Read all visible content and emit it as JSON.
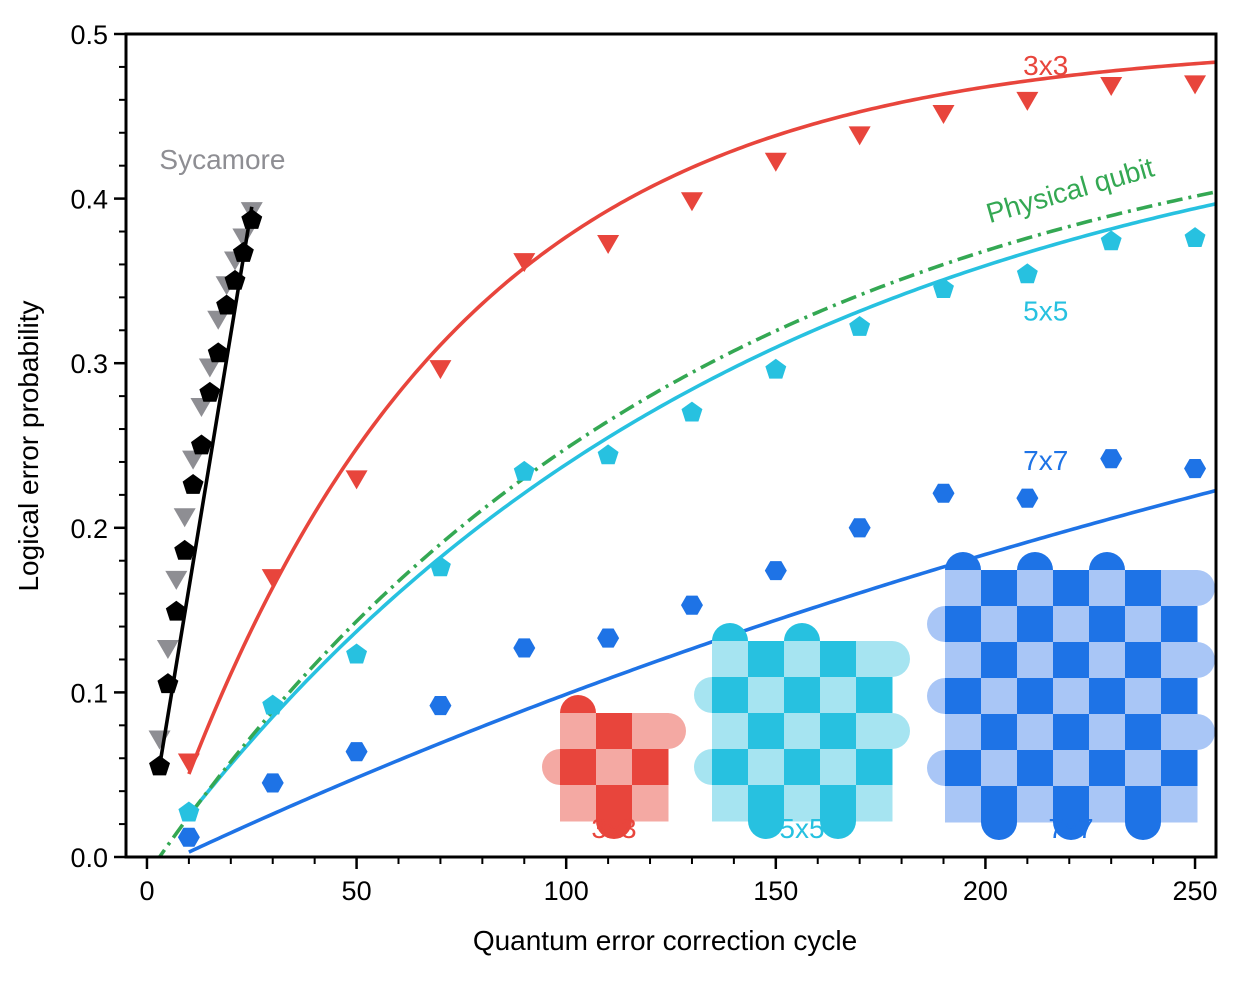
{
  "chart_data": {
    "type": "line",
    "xlabel": "Quantum error correction cycle",
    "ylabel": "Logical error probability",
    "xlim": [
      -5,
      255
    ],
    "ylim": [
      0,
      0.5
    ],
    "xticks": [
      0,
      50,
      100,
      150,
      200,
      250
    ],
    "xtick_labels": [
      "0",
      "50",
      "100",
      "150",
      "200",
      "250"
    ],
    "yticks": [
      0,
      0.1,
      0.2,
      0.3,
      0.4,
      0.5
    ],
    "ytick_labels": [
      "0.0",
      "0.1",
      "0.2",
      "0.3",
      "0.4",
      "0.5"
    ],
    "grid": false,
    "legend": "none",
    "colors": {
      "sycamore": "#8e8e93",
      "sycamore_dark": "#000000",
      "d3": "#e8453c",
      "d3_light": "#f4a9a3",
      "d5": "#27c1e0",
      "d5_light": "#a6e4f1",
      "d7": "#1e73e6",
      "d7_light": "#a9c6f6",
      "physical": "#34a853"
    },
    "labels": {
      "sycamore": "Sycamore",
      "physical": "Physical qubit",
      "d3": "3x3",
      "d5": "5x5",
      "d7": "7x7"
    },
    "series": [
      {
        "key": "sycamore_gray",
        "marker": "triangle-down",
        "color": "#8e8e93",
        "points": [
          [
            3,
            0.072
          ],
          [
            5,
            0.127
          ],
          [
            7,
            0.169
          ],
          [
            9,
            0.207
          ],
          [
            11,
            0.242
          ],
          [
            13,
            0.274
          ],
          [
            15,
            0.298
          ],
          [
            17,
            0.327
          ],
          [
            19,
            0.348
          ],
          [
            21,
            0.363
          ],
          [
            23,
            0.377
          ],
          [
            25,
            0.393
          ]
        ]
      },
      {
        "key": "sycamore_black",
        "marker": "pentagon",
        "color": "#000000",
        "points": [
          [
            3,
            0.055
          ],
          [
            5,
            0.105
          ],
          [
            7,
            0.149
          ],
          [
            9,
            0.186
          ],
          [
            11,
            0.226
          ],
          [
            13,
            0.25
          ],
          [
            15,
            0.282
          ],
          [
            17,
            0.306
          ],
          [
            19,
            0.335
          ],
          [
            21,
            0.35
          ],
          [
            23,
            0.367
          ],
          [
            25,
            0.387
          ]
        ],
        "fit": [
          [
            3,
            0.055
          ],
          [
            25,
            0.395
          ]
        ]
      },
      {
        "key": "d3",
        "marker": "triangle-down",
        "color": "#e8453c",
        "points": [
          [
            10,
            0.058
          ],
          [
            30,
            0.17
          ],
          [
            50,
            0.23
          ],
          [
            70,
            0.297
          ],
          [
            90,
            0.362
          ],
          [
            110,
            0.373
          ],
          [
            130,
            0.399
          ],
          [
            150,
            0.423
          ],
          [
            170,
            0.439
          ],
          [
            190,
            0.452
          ],
          [
            210,
            0.46
          ],
          [
            230,
            0.469
          ],
          [
            250,
            0.47
          ]
        ],
        "fit_model": {
          "p0": -0.02,
          "amp": 0.515,
          "tau": 68,
          "from": 10,
          "to": 255
        }
      },
      {
        "key": "d5",
        "marker": "pentagon",
        "color": "#27c1e0",
        "points": [
          [
            10,
            0.027
          ],
          [
            30,
            0.092
          ],
          [
            50,
            0.123
          ],
          [
            70,
            0.176
          ],
          [
            90,
            0.234
          ],
          [
            110,
            0.244
          ],
          [
            130,
            0.27
          ],
          [
            150,
            0.296
          ],
          [
            170,
            0.322
          ],
          [
            190,
            0.345
          ],
          [
            210,
            0.354
          ],
          [
            230,
            0.374
          ],
          [
            250,
            0.376
          ]
        ],
        "fit_model": {
          "p0": -0.008,
          "amp": 0.483,
          "tau": 140,
          "from": 10,
          "to": 255
        }
      },
      {
        "key": "d7",
        "marker": "hexagon",
        "color": "#1e73e6",
        "points": [
          [
            10,
            0.012
          ],
          [
            30,
            0.045
          ],
          [
            50,
            0.064
          ],
          [
            70,
            0.092
          ],
          [
            90,
            0.127
          ],
          [
            110,
            0.133
          ],
          [
            130,
            0.153
          ],
          [
            150,
            0.174
          ],
          [
            170,
            0.2
          ],
          [
            190,
            0.221
          ],
          [
            210,
            0.218
          ],
          [
            230,
            0.242
          ],
          [
            250,
            0.236
          ]
        ],
        "fit_model": {
          "p0": -0.009,
          "amp": 0.509,
          "tau": 420,
          "from": 10,
          "to": 255
        }
      },
      {
        "key": "physical",
        "marker": "none",
        "color": "#34a853",
        "dashed": true,
        "fit_model": {
          "p0": -0.011,
          "amp": 0.483,
          "tau": 130,
          "from": 2,
          "to": 255
        }
      }
    ],
    "annotations": [
      {
        "key": "sycamore",
        "x": 18,
        "y": 0.418
      },
      {
        "key": "d3",
        "x": 209,
        "y": 0.475,
        "anchor": "start"
      },
      {
        "key": "physical",
        "x": 201,
        "y": 0.385,
        "anchor": "start",
        "rotate": -16
      },
      {
        "key": "d5",
        "x": 209,
        "y": 0.326,
        "anchor": "start"
      },
      {
        "key": "d7",
        "x": 209,
        "y": 0.235,
        "anchor": "start"
      }
    ],
    "insets": [
      {
        "key": "d3",
        "n": 3,
        "caption": "3x3"
      },
      {
        "key": "d5",
        "n": 5,
        "caption": "5x5"
      },
      {
        "key": "d7",
        "n": 7,
        "caption": "7x7"
      }
    ]
  }
}
